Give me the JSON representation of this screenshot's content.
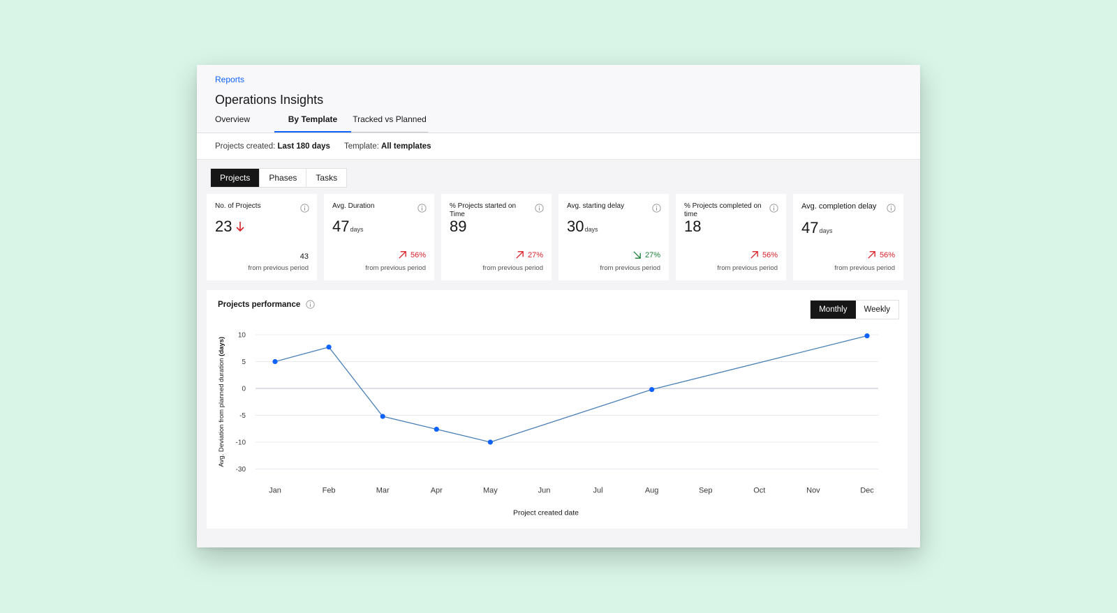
{
  "breadcrumb": "Reports",
  "page_title": "Operations Insights",
  "tabs": [
    {
      "label": "Overview"
    },
    {
      "label": "By Template",
      "active": true
    },
    {
      "label": "Tracked vs Planned"
    }
  ],
  "filters": {
    "created_label": "Projects created:",
    "created_value": "Last 180 days",
    "template_label": "Template:",
    "template_value": "All templates"
  },
  "segments": [
    {
      "label": "Projects",
      "active": true
    },
    {
      "label": "Phases"
    },
    {
      "label": "Tasks"
    }
  ],
  "cards": [
    {
      "label": "No. of Projects",
      "value": "23",
      "unit": "",
      "trend": "down",
      "previous": "43",
      "from": "from previous period"
    },
    {
      "label": "Avg. Duration",
      "value": "47",
      "unit": "days",
      "trend": "up",
      "change": "56%",
      "from": "from previous period"
    },
    {
      "label": "% Projects started on Time",
      "value": "89",
      "unit": "",
      "trend": "up",
      "change": "27%",
      "from": "from previous period"
    },
    {
      "label": "Avg. starting delay",
      "value": "30",
      "unit": "days",
      "trend": "down-good",
      "change": "27%",
      "from": "from previous period"
    },
    {
      "label": "% Projects completed on time",
      "value": "18",
      "unit": "",
      "trend": "up",
      "change": "56%",
      "from": "from previous period"
    },
    {
      "label": "Avg. completion delay",
      "value": "47",
      "unit": "days",
      "trend": "up",
      "change": "56%",
      "from": "from previous period"
    }
  ],
  "colors": {
    "accent": "#0f62fe",
    "negative": "#da1e28",
    "positive": "#198038",
    "line": "#4a7fb5",
    "dot": "#0f62fe"
  },
  "performance": {
    "title": "Projects performance",
    "toggle": [
      {
        "label": "Monthly",
        "active": true
      },
      {
        "label": "Weekly"
      }
    ]
  },
  "chart_data": {
    "type": "line",
    "title": "Projects performance",
    "xlabel": "Project created date",
    "ylabel_prefix": "Avg. Deviation from planned duration",
    "ylabel_suffix": "(days)",
    "categories": [
      "Jan",
      "Feb",
      "Mar",
      "Apr",
      "May",
      "Jun",
      "Jul",
      "Aug",
      "Sep",
      "Oct",
      "Nov",
      "Dec"
    ],
    "y_ticks": [
      "10",
      "5",
      "0",
      "-5",
      "-10",
      "-30"
    ],
    "points": [
      {
        "x": "Jan",
        "y": 5
      },
      {
        "x": "Feb",
        "y": 7.7
      },
      {
        "x": "Mar",
        "y": -5.2
      },
      {
        "x": "Apr",
        "y": -7.6
      },
      {
        "x": "May",
        "y": -10
      },
      {
        "x": "Aug",
        "y": -0.2
      },
      {
        "x": "Dec",
        "y": 9.8
      }
    ],
    "grid": true,
    "legend": "none"
  }
}
